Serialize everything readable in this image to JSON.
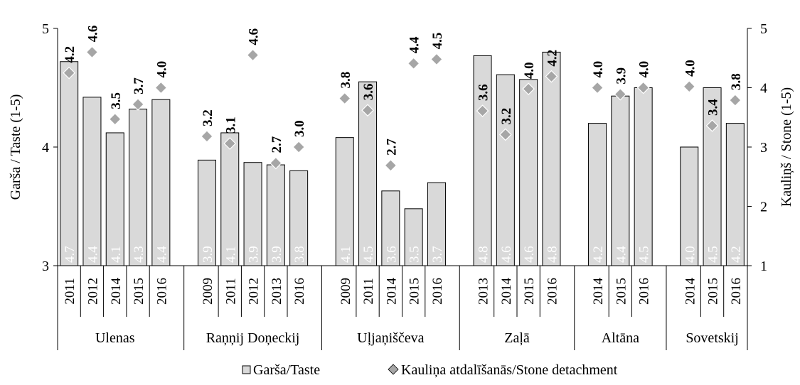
{
  "chart_data": {
    "type": "bar",
    "left_axis": {
      "label": "Garša / Taste  (1-5)",
      "range": [
        3,
        5
      ],
      "ticks": [
        "3",
        "4",
        "5"
      ]
    },
    "right_axis": {
      "label": "Kauliņš / Stone  (1-5)",
      "range": [
        1,
        5
      ],
      "ticks": [
        "1",
        "2",
        "3",
        "4",
        "5"
      ]
    },
    "legend": [
      "Garša/Taste",
      "Kauliņa atdalīšanās/Stone detachment"
    ],
    "legend_placement": "bottom",
    "grid": false,
    "groups": [
      {
        "name": "Ulenas",
        "years": [
          "2011",
          "2012",
          "2014",
          "2015",
          "2016"
        ],
        "taste": [
          4.72,
          4.42,
          4.12,
          4.32,
          4.4
        ],
        "taste_labels": [
          "4.7",
          "4.4",
          "4.1",
          "4.3",
          "4.4"
        ],
        "stone": [
          4.25,
          4.6,
          3.47,
          3.72,
          4.0
        ],
        "stone_labels": [
          "4.2",
          "4.6",
          "3.5",
          "3.7",
          "4.0"
        ]
      },
      {
        "name": "Raņņij Doņeckij",
        "years": [
          "2009",
          "2011",
          "2012",
          "2013",
          "2016"
        ],
        "taste": [
          3.89,
          4.12,
          3.87,
          3.85,
          3.8
        ],
        "taste_labels": [
          "3.9",
          "4.1",
          "3.9",
          "3.9",
          "3.8"
        ],
        "stone": [
          3.18,
          3.06,
          4.55,
          2.73,
          3.0
        ],
        "stone_labels": [
          "3.2",
          "3.1",
          "4.6",
          "2.7",
          "3.0"
        ]
      },
      {
        "name": "Uļjaņiščeva",
        "years": [
          "2009",
          "2011",
          "2014",
          "2015",
          "2016"
        ],
        "taste": [
          4.08,
          4.55,
          3.63,
          3.48,
          3.7
        ],
        "taste_labels": [
          "4.1",
          "4.5",
          "3.6",
          "3.5",
          "3.7"
        ],
        "stone": [
          3.82,
          3.62,
          2.69,
          4.41,
          4.48
        ],
        "stone_labels": [
          "3.8",
          "3.6",
          "2.7",
          "4.4",
          "4.5"
        ]
      },
      {
        "name": "Zaļā",
        "years": [
          "2013",
          "2014",
          "2015",
          "2016"
        ],
        "taste": [
          4.77,
          4.61,
          4.57,
          4.8
        ],
        "taste_labels": [
          "4.8",
          "4.6",
          "4.6",
          "4.8"
        ],
        "stone": [
          3.61,
          3.21,
          3.98,
          4.19
        ],
        "stone_labels": [
          "3.6",
          "3.2",
          "4.0",
          "4.2"
        ]
      },
      {
        "name": "Altāna",
        "years": [
          "2014",
          "2015",
          "2016"
        ],
        "taste": [
          4.2,
          4.43,
          4.5
        ],
        "taste_labels": [
          "4.2",
          "4.4",
          "4.5"
        ],
        "stone": [
          4.0,
          3.89,
          4.0
        ],
        "stone_labels": [
          "4.0",
          "3.9",
          "4.0"
        ]
      },
      {
        "name": "Sovetskij",
        "years": [
          "2014",
          "2015",
          "2016"
        ],
        "taste": [
          4.0,
          4.5,
          4.2
        ],
        "taste_labels": [
          "4.0",
          "4.5",
          "4.2"
        ],
        "stone": [
          4.02,
          3.36,
          3.79
        ],
        "stone_labels": [
          "4.0",
          "3.4",
          "3.8"
        ]
      }
    ]
  },
  "colors": {
    "bar_fill": "#d9d9d9",
    "bar_stroke": "#000000",
    "diamond_fill": "#a6a6a6",
    "bar_label": "#ffffff"
  }
}
